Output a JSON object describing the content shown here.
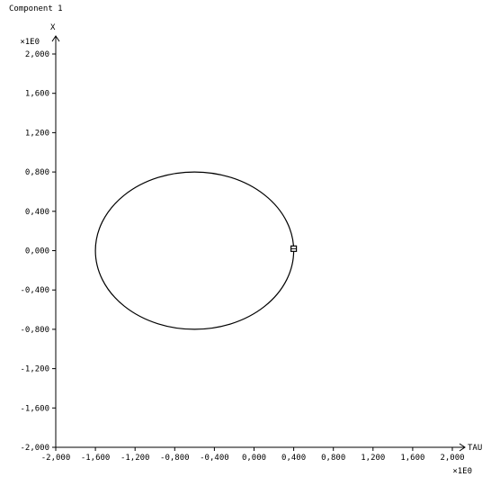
{
  "window_title": "Component 1",
  "chart_data": {
    "type": "line",
    "title": "Component 1",
    "xlabel": "TAU",
    "ylabel": "X",
    "x_multiplier": "×1E0",
    "y_multiplier": "×1E0",
    "xlim": [
      -2.0,
      2.0
    ],
    "ylim": [
      -2.0,
      2.0
    ],
    "x_ticks": [
      -2.0,
      -1.6,
      -1.2,
      -0.8,
      -0.4,
      0.0,
      0.4,
      0.8,
      1.2,
      1.6,
      2.0
    ],
    "y_ticks": [
      -2.0,
      -1.6,
      -1.2,
      -0.8,
      -0.4,
      0.0,
      0.4,
      0.8,
      1.2,
      1.6,
      2.0
    ],
    "x_tick_labels": [
      "-2,000",
      "-1,600",
      "-1,200",
      "-0,800",
      "-0,400",
      "0,000",
      "0,400",
      "0,800",
      "1,200",
      "1,600",
      "2,000"
    ],
    "y_tick_labels": [
      "-2,000",
      "-1,600",
      "-1,200",
      "-0,800",
      "-0,400",
      "0,000",
      "0,400",
      "0,800",
      "1,200",
      "1,600",
      "2,000"
    ],
    "grid": false,
    "series": [
      {
        "shape": "ellipse",
        "center": [
          -0.6,
          0.0
        ],
        "radius_x": 1.0,
        "radius_y": 0.8,
        "color": "#000000"
      }
    ],
    "marker": {
      "x": 0.4,
      "y": 0.02,
      "symbol": "square"
    }
  }
}
